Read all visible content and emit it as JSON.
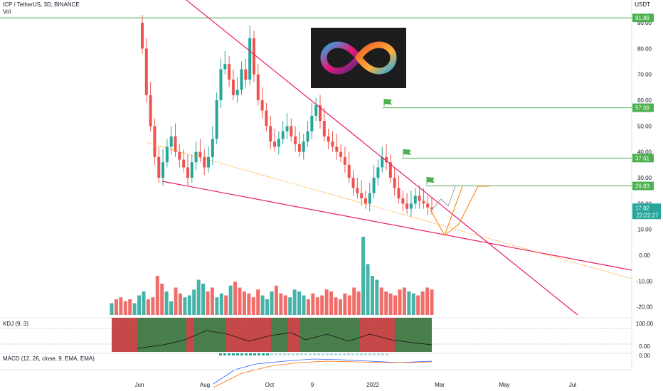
{
  "header": {
    "title": "ICP / TetherUS, 3D, BINANCE",
    "vol_label": "Vol",
    "currency": "USDT",
    "kdj_label": "KDJ (9, 3)",
    "macd_label": "MACD (12, 26, close, 9, EMA, EMA)"
  },
  "current_price": {
    "value": "17.82",
    "countdown": "22:22:27",
    "color": "#26a69a"
  },
  "colors": {
    "up": "#26a69a",
    "down": "#ef5350",
    "trendline": "#e91e63",
    "level": "#4caf50",
    "dotted": "#ff9800"
  },
  "chart_data": {
    "type": "candlestick",
    "symbol": "ICP / TetherUS",
    "timeframe": "3D",
    "exchange": "BINANCE",
    "ylim": [
      -25,
      95
    ],
    "y_ticks": [
      -20,
      -10,
      0,
      10,
      20,
      30,
      40,
      50,
      60,
      70,
      80,
      90
    ],
    "x_ticks": [
      "Jun",
      "Aug",
      "Oct",
      "9",
      "2022",
      "Mar",
      "May",
      "Jul"
    ],
    "horizontal_levels": [
      {
        "value": 91.89,
        "label": "91.89"
      },
      {
        "value": 57.09,
        "label": "57.09"
      },
      {
        "value": 37.61,
        "label": "37.61"
      },
      {
        "value": 26.83,
        "label": "26.83"
      }
    ],
    "close_series": [
      80,
      62,
      50,
      38,
      30,
      36,
      42,
      46,
      40,
      37,
      34,
      30,
      36,
      40,
      38,
      34,
      38,
      45,
      60,
      72,
      74,
      68,
      62,
      64,
      72,
      68,
      84,
      70,
      60,
      56,
      50,
      44,
      42,
      45,
      48,
      50,
      46,
      43,
      40,
      44,
      48,
      54,
      58,
      52,
      46,
      44,
      42,
      40,
      38,
      35,
      30,
      26,
      24,
      22,
      20,
      24,
      30,
      34,
      38,
      36,
      30,
      26,
      22,
      20,
      18,
      20,
      23,
      21,
      20,
      18.5,
      17.82
    ],
    "volume_series": [
      6,
      8,
      9,
      7,
      8,
      6,
      10,
      12,
      8,
      9,
      20,
      16,
      12,
      7,
      14,
      11,
      9,
      10,
      13,
      18,
      16,
      12,
      14,
      9,
      11,
      10,
      15,
      17,
      14,
      12,
      11,
      9,
      13,
      10,
      8,
      12,
      15,
      11,
      10,
      9,
      13,
      12,
      10,
      8,
      11,
      9,
      10,
      13,
      12,
      9,
      8,
      11,
      10,
      14,
      12,
      40,
      26,
      20,
      18,
      14,
      12,
      11,
      10,
      13,
      14,
      12,
      11,
      10,
      12,
      14,
      13
    ],
    "series": [
      {
        "name": "KDJ (9, 3)",
        "type": "oscillator"
      },
      {
        "name": "MACD (12, 26, close, 9, EMA, EMA)",
        "type": "oscillator"
      }
    ],
    "kdj_ticks": [
      100.0,
      0.0
    ],
    "macd_ticks": [
      0.0
    ]
  }
}
